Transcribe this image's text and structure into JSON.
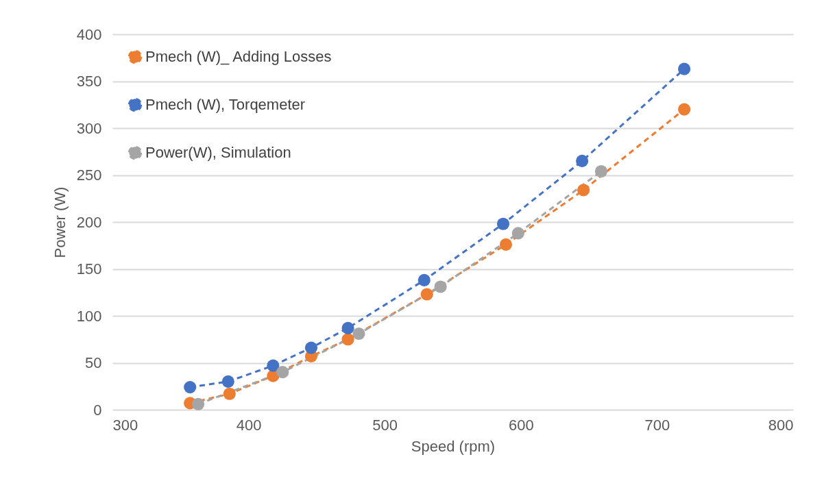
{
  "chart_data": {
    "type": "line",
    "xlabel": "Speed (rpm)",
    "ylabel": "Power (W)",
    "xlim": [
      300,
      800
    ],
    "xticks": [
      300,
      400,
      500,
      600,
      700,
      800
    ],
    "ylim": [
      0,
      400
    ],
    "yticks": [
      0,
      50,
      100,
      150,
      200,
      250,
      300,
      350,
      400
    ],
    "grid": "y",
    "legend": "top left",
    "marker": "circle",
    "line_style": "dashed",
    "series": [
      {
        "name": "Pmech (W)_ Adding Losses",
        "color": "#ed7d31",
        "x": [
          357,
          386,
          418,
          446,
          473,
          531,
          589,
          646,
          720
        ],
        "values": [
          7,
          17,
          36,
          57,
          75,
          123,
          176,
          234,
          320
        ]
      },
      {
        "name": "Pmech (W), Torqemeter",
        "color": "#4472c4",
        "x": [
          357,
          385,
          418,
          446,
          473,
          529,
          587,
          645,
          720
        ],
        "values": [
          24,
          30,
          47,
          66,
          87,
          138,
          198,
          265,
          363
        ]
      },
      {
        "name": "Power(W), Simulation",
        "color": "#a5a5a5",
        "x": [
          363,
          425,
          481,
          541,
          598,
          659
        ],
        "values": [
          6,
          40,
          81,
          131,
          188,
          254
        ]
      }
    ]
  }
}
